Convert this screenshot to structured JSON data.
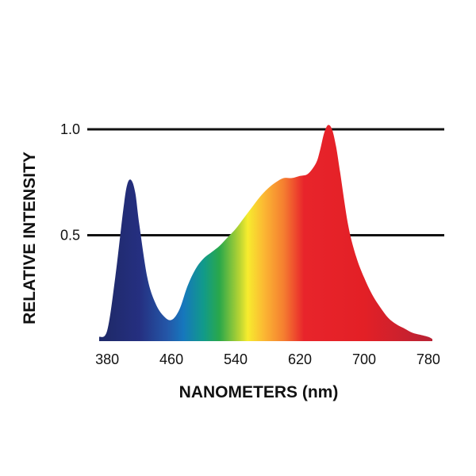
{
  "chart_data": {
    "type": "area",
    "title": "",
    "xlabel": "NANOMETERS (nm)",
    "ylabel": "RELATIVE INTENSITY",
    "xlim": [
      370,
      785
    ],
    "ylim": [
      0,
      1.0
    ],
    "x_ticks": [
      380,
      460,
      540,
      620,
      700,
      780
    ],
    "x_tick_labels": [
      "380",
      "460",
      "540",
      "620",
      "700",
      "780"
    ],
    "y_ticks": [
      0.5,
      1.0
    ],
    "y_tick_labels": [
      "0.5",
      "1.0"
    ],
    "grid": {
      "horizontal_lines_at": [
        0.5,
        1.0
      ]
    },
    "legend": "none",
    "fill": "visible-spectrum gradient by wavelength",
    "series": [
      {
        "x": [
          370,
          380,
          390,
          400,
          405,
          410,
          415,
          420,
          430,
          440,
          450,
          460,
          470,
          480,
          490,
          500,
          510,
          520,
          530,
          540,
          550,
          560,
          570,
          580,
          590,
          600,
          610,
          620,
          630,
          640,
          645,
          650,
          655,
          660,
          665,
          670,
          680,
          690,
          700,
          710,
          720,
          730,
          740,
          750,
          760,
          770,
          780,
          785
        ],
        "y": [
          0.02,
          0.05,
          0.3,
          0.62,
          0.74,
          0.76,
          0.7,
          0.55,
          0.3,
          0.18,
          0.12,
          0.1,
          0.15,
          0.26,
          0.34,
          0.39,
          0.42,
          0.45,
          0.49,
          0.53,
          0.58,
          0.63,
          0.68,
          0.72,
          0.75,
          0.77,
          0.77,
          0.78,
          0.79,
          0.84,
          0.9,
          0.98,
          1.02,
          1.0,
          0.92,
          0.8,
          0.55,
          0.4,
          0.3,
          0.22,
          0.16,
          0.11,
          0.08,
          0.06,
          0.04,
          0.03,
          0.02,
          0.01
        ]
      }
    ],
    "colors": {
      "line": "#111111",
      "text": "#111111",
      "gradient_stops": [
        {
          "nm": 380,
          "color": "#1f2a6b"
        },
        {
          "nm": 420,
          "color": "#252f80"
        },
        {
          "nm": 455,
          "color": "#2457a8"
        },
        {
          "nm": 475,
          "color": "#1677bd"
        },
        {
          "nm": 500,
          "color": "#119a8a"
        },
        {
          "nm": 520,
          "color": "#2aa84a"
        },
        {
          "nm": 545,
          "color": "#b8d433"
        },
        {
          "nm": 555,
          "color": "#f7ec2e"
        },
        {
          "nm": 575,
          "color": "#fbb833"
        },
        {
          "nm": 600,
          "color": "#f57e30"
        },
        {
          "nm": 625,
          "color": "#e8242b"
        },
        {
          "nm": 700,
          "color": "#e32026"
        },
        {
          "nm": 785,
          "color": "#b82234"
        }
      ]
    }
  }
}
